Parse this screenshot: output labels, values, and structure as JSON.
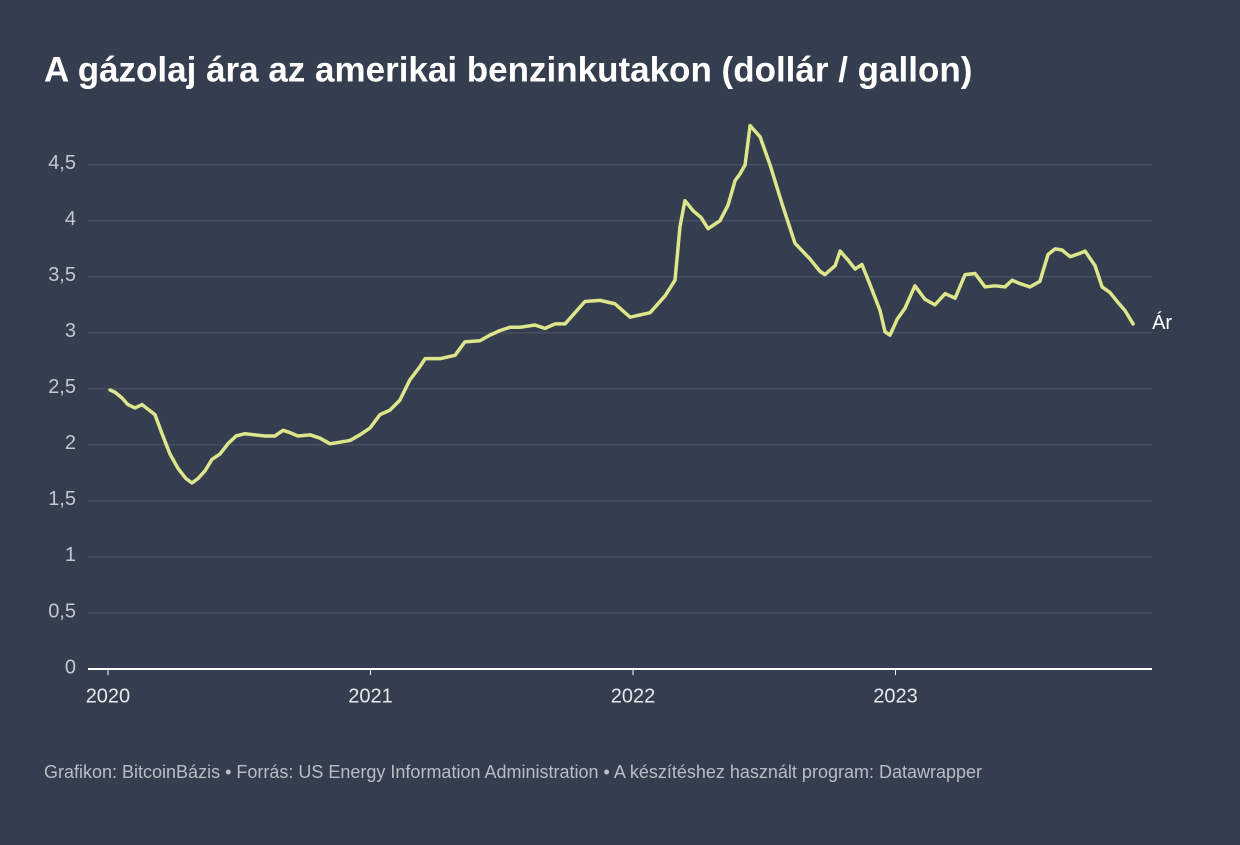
{
  "chart_data": {
    "type": "line",
    "title": "A gázolaj ára az amerikai benzinkutakon (dollár / gallon)",
    "footer": "Grafikon: BitcoinBázis • Forrás: US Energy Information Administration • A készítéshez használt program: Datawrapper",
    "x": [
      2020.008,
      2020.027,
      2020.053,
      2020.076,
      2020.103,
      2020.13,
      2020.152,
      2020.179,
      2020.206,
      2020.236,
      2020.267,
      2020.297,
      2020.32,
      2020.343,
      2020.37,
      2020.396,
      2020.427,
      2020.457,
      2020.488,
      2020.522,
      2020.56,
      2020.598,
      2020.636,
      2020.667,
      2020.693,
      2020.724,
      2020.77,
      2020.808,
      2020.846,
      2020.922,
      2020.96,
      2020.998,
      2021.036,
      2021.074,
      2021.112,
      2021.15,
      2021.189,
      2021.208,
      2021.265,
      2021.322,
      2021.36,
      2021.417,
      2021.455,
      2021.493,
      2021.531,
      2021.57,
      2021.627,
      2021.665,
      2021.703,
      2021.741,
      2021.779,
      2021.817,
      2021.874,
      2021.931,
      2021.989,
      2022.065,
      2022.122,
      2022.16,
      2022.179,
      2022.198,
      2022.229,
      2022.259,
      2022.286,
      2022.331,
      2022.362,
      2022.389,
      2022.408,
      2022.427,
      2022.446,
      2022.484,
      2022.522,
      2022.568,
      2022.617,
      2022.674,
      2022.712,
      2022.731,
      2022.77,
      2022.789,
      2022.819,
      2022.846,
      2022.872,
      2022.903,
      2022.941,
      2022.96,
      2022.979,
      2023.006,
      2023.036,
      2023.074,
      2023.112,
      2023.15,
      2023.189,
      2023.227,
      2023.265,
      2023.303,
      2023.341,
      2023.379,
      2023.417,
      2023.444,
      2023.474,
      2023.512,
      2023.55,
      2023.581,
      2023.608,
      2023.634,
      2023.665,
      2023.703,
      2023.722,
      2023.76,
      2023.787,
      2023.817,
      2023.848,
      2023.874,
      2023.905
    ],
    "series": [
      {
        "name": "Ár",
        "color": "#dde68b",
        "values": [
          2.49,
          2.47,
          2.42,
          2.36,
          2.33,
          2.36,
          2.32,
          2.27,
          2.1,
          1.92,
          1.79,
          1.7,
          1.66,
          1.7,
          1.77,
          1.87,
          1.92,
          2.01,
          2.08,
          2.1,
          2.09,
          2.08,
          2.08,
          2.13,
          2.11,
          2.08,
          2.09,
          2.06,
          2.01,
          2.04,
          2.09,
          2.15,
          2.27,
          2.31,
          2.4,
          2.58,
          2.7,
          2.77,
          2.77,
          2.8,
          2.92,
          2.93,
          2.98,
          3.02,
          3.05,
          3.05,
          3.07,
          3.04,
          3.08,
          3.08,
          3.18,
          3.28,
          3.29,
          3.26,
          3.14,
          3.18,
          3.33,
          3.47,
          3.95,
          4.18,
          4.09,
          4.03,
          3.93,
          4.0,
          4.14,
          4.36,
          4.42,
          4.5,
          4.85,
          4.75,
          4.5,
          4.15,
          3.8,
          3.66,
          3.55,
          3.52,
          3.6,
          3.73,
          3.65,
          3.57,
          3.61,
          3.43,
          3.2,
          3.01,
          2.98,
          3.12,
          3.22,
          3.42,
          3.3,
          3.25,
          3.35,
          3.31,
          3.52,
          3.53,
          3.41,
          3.42,
          3.41,
          3.47,
          3.44,
          3.41,
          3.46,
          3.7,
          3.75,
          3.74,
          3.68,
          3.71,
          3.73,
          3.6,
          3.41,
          3.36,
          3.27,
          3.2,
          3.08
        ]
      }
    ],
    "xlim": [
      2019.924,
      2023.977
    ],
    "xticks": [
      2020,
      2021,
      2022,
      2023
    ],
    "ylim": [
      0,
      4.9
    ],
    "yticks": [
      0,
      {
        "value": 0.5,
        "label": "0,5"
      },
      1,
      {
        "value": 1.5,
        "label": "1,5"
      },
      2,
      {
        "value": 2.5,
        "label": "2,5"
      },
      3,
      {
        "value": 3.5,
        "label": "3,5"
      },
      4,
      {
        "value": 4.5,
        "label": "4,5"
      }
    ],
    "grid": true
  }
}
